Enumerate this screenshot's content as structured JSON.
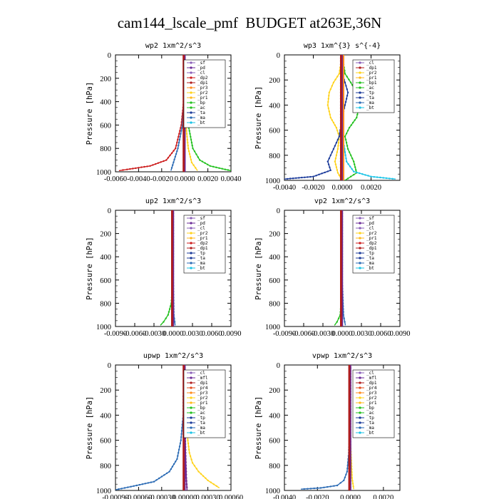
{
  "title": "cam144_lscale_pmf  BUDGET at263E,36N",
  "chart_data": [
    {
      "type": "line",
      "title": "wp2  1xm^2/s^3",
      "ylabel": "Pressure [hPa]",
      "xlim": [
        -0.006,
        0.004
      ],
      "ylim": [
        1000,
        0
      ],
      "xticks": [
        "-0.0060",
        "-0.0040",
        "-0.0020",
        "0.0000",
        "0.0020",
        "0.0040"
      ],
      "yticks": [
        0,
        200,
        400,
        600,
        800,
        1000
      ],
      "legend": [
        "_sf",
        "_pd",
        "_cl",
        "_dp2",
        "_dp1",
        "_pr3",
        "_pr2",
        "_pr1",
        "_bp",
        "_ac",
        "_ta",
        "_ma",
        "_bt"
      ],
      "legend_position": "top-right",
      "series": [
        {
          "name": "_pr1",
          "color": "#22c11e",
          "x": [
            0,
            0,
            0.0001,
            0.0003,
            0.0007,
            0.0013,
            0.0022,
            0.0035,
            0.004
          ],
          "y": [
            0,
            200,
            400,
            600,
            800,
            900,
            950,
            980,
            990
          ]
        },
        {
          "name": "_dp1",
          "color": "#cc1a1a",
          "x": [
            0,
            0,
            -0.0001,
            -0.0003,
            -0.0008,
            -0.0016,
            -0.003,
            -0.005,
            -0.0057
          ],
          "y": [
            0,
            200,
            400,
            600,
            800,
            900,
            950,
            980,
            990
          ]
        },
        {
          "name": "_pr2",
          "color": "#ffd21a",
          "x": [
            0,
            0,
            0,
            0.0001,
            0.0003,
            0.0006,
            0.0011
          ],
          "y": [
            0,
            200,
            400,
            600,
            800,
            920,
            990
          ]
        },
        {
          "name": "_pd",
          "color": "#6a2a96",
          "x": [
            -0.0001,
            -0.0001,
            -0.0001,
            -0.0001,
            -0.0001,
            -0.0001
          ],
          "y": [
            0,
            200,
            400,
            600,
            800,
            1000
          ]
        },
        {
          "name": "_ma",
          "color": "#2a6ab4",
          "x": [
            0,
            0,
            -0.0001,
            -0.0002,
            -0.0006,
            -0.0012
          ],
          "y": [
            0,
            200,
            400,
            600,
            800,
            990
          ]
        }
      ]
    },
    {
      "type": "line",
      "title": "wp3  1xm^{3} s^{-4}",
      "ylabel": "Pressure [hPa]",
      "xlim": [
        -0.004,
        0.004
      ],
      "ylim": [
        1000,
        0
      ],
      "xticks": [
        "-0.0040",
        "-0.0020",
        "0.0000",
        "0.0020"
      ],
      "yticks": [
        0,
        200,
        400,
        600,
        800,
        1000
      ],
      "legend": [
        "_cl",
        "_dp1",
        "_pr2",
        "_pr1",
        "_bp1",
        "_ac",
        "_tp",
        "_ta",
        "_ma",
        "_bt"
      ],
      "legend_position": "top-right",
      "series": [
        {
          "name": "_pr2",
          "color": "#ffd21a",
          "x": [
            0,
            -0.0002,
            -0.0006,
            -0.0009,
            -0.001,
            -0.0008,
            -0.0004,
            -0.0002,
            -0.0003,
            -0.0005,
            -0.0003,
            0
          ],
          "y": [
            0,
            150,
            220,
            300,
            400,
            500,
            580,
            650,
            750,
            850,
            940,
            1000
          ]
        },
        {
          "name": "_ac",
          "color": "#22c11e",
          "x": [
            0,
            0.0002,
            0.0006,
            0.001,
            0.0012,
            0.001,
            0.0005,
            0.0002,
            0.0004,
            0.0008,
            0.001,
            0.0002
          ],
          "y": [
            0,
            150,
            220,
            300,
            400,
            500,
            580,
            650,
            750,
            850,
            940,
            1000
          ]
        },
        {
          "name": "_tp",
          "color": "#1a3a9a",
          "x": [
            0,
            0,
            0.0002,
            0.0004,
            0.0002,
            0,
            -0.0002,
            -0.0006,
            -0.001,
            -0.0008,
            -0.002,
            -0.004
          ],
          "y": [
            0,
            150,
            220,
            300,
            400,
            500,
            650,
            750,
            850,
            920,
            970,
            990
          ]
        },
        {
          "name": "_bt",
          "color": "#19c3e6",
          "x": [
            0,
            0,
            0.0001,
            0.0003,
            0.0008,
            0.002,
            0.0037
          ],
          "y": [
            0,
            400,
            700,
            850,
            930,
            970,
            990
          ]
        },
        {
          "name": "_dp1",
          "color": "#cc1a1a",
          "x": [
            -0.0001,
            -0.0001,
            -0.0001,
            -0.0001,
            -0.0001,
            -0.0001
          ],
          "y": [
            0,
            200,
            400,
            600,
            800,
            1000
          ]
        }
      ]
    },
    {
      "type": "line",
      "title": "up2  1xm^2/s^3",
      "ylabel": "Pressure [hPa]",
      "xlim": [
        -0.009,
        0.009
      ],
      "ylim": [
        1000,
        0
      ],
      "xticks": [
        "-0.0090",
        "-0.0060",
        "-0.0030",
        "0.0000",
        "0.0030",
        "0.0060",
        "0.0090"
      ],
      "yticks": [
        0,
        200,
        400,
        600,
        800,
        1000
      ],
      "legend": [
        "_sf",
        "_pd",
        "_cl",
        "_pr2",
        "_pr1",
        "_dp2",
        "_dp1",
        "_tp",
        "_ta",
        "_ma",
        "_bt"
      ],
      "legend_position": "top-right",
      "series": [
        {
          "name": "_pr1",
          "color": "#22c11e",
          "x": [
            0,
            0,
            -0.0001,
            -0.0003,
            -0.0008,
            -0.0015,
            -0.002
          ],
          "y": [
            0,
            400,
            650,
            800,
            900,
            960,
            990
          ]
        },
        {
          "name": "_dp1",
          "color": "#cc1a1a",
          "x": [
            -0.0001,
            -0.0001,
            -0.0001,
            -0.0001,
            -0.0001,
            -0.0001
          ],
          "y": [
            0,
            200,
            400,
            600,
            800,
            1000
          ]
        },
        {
          "name": "_ma",
          "color": "#2a6ab4",
          "x": [
            0,
            0,
            0.0001,
            0.0003
          ],
          "y": [
            0,
            600,
            900,
            990
          ]
        }
      ]
    },
    {
      "type": "line",
      "title": "vp2  1xm^2/s^3",
      "ylabel": "Pressure [hPa]",
      "xlim": [
        -0.009,
        0.009
      ],
      "ylim": [
        1000,
        0
      ],
      "xticks": [
        "-0.0090",
        "-0.0060",
        "-0.0030",
        "0.0000",
        "0.0030",
        "0.0060",
        "0.0090"
      ],
      "yticks": [
        0,
        200,
        400,
        600,
        800,
        1000
      ],
      "legend": [
        "_sf",
        "_pd",
        "_cl",
        "_pr2",
        "_pr1",
        "_dp2",
        "_dp1",
        "_tp",
        "_ta",
        "_ma",
        "_bt"
      ],
      "legend_position": "top-right",
      "series": [
        {
          "name": "_pr1",
          "color": "#22c11e",
          "x": [
            0,
            0,
            -0.0001,
            -0.0003,
            -0.0008,
            -0.0012
          ],
          "y": [
            0,
            500,
            750,
            900,
            960,
            990
          ]
        },
        {
          "name": "_dp1",
          "color": "#cc1a1a",
          "x": [
            -0.0001,
            -0.0001,
            -0.0001,
            -0.0001,
            -0.0001,
            -0.0001
          ],
          "y": [
            0,
            200,
            400,
            600,
            800,
            1000
          ]
        },
        {
          "name": "_ma",
          "color": "#2a6ab4",
          "x": [
            0,
            0,
            0.0002,
            0.0005
          ],
          "y": [
            0,
            600,
            900,
            990
          ]
        }
      ]
    },
    {
      "type": "line",
      "title": "upwp  1xm^2/s^3",
      "ylabel": "Pressure [hPa]",
      "xlim": [
        -0.0009,
        0.0006
      ],
      "ylim": [
        1000,
        0
      ],
      "xticks": [
        "-0.00090",
        "-0.00060",
        "-0.00030",
        "0.00000",
        "0.00030",
        "0.00060"
      ],
      "yticks": [
        0,
        200,
        400,
        600,
        800,
        1000
      ],
      "legend": [
        "_cl",
        "_mfl",
        "_dp1",
        "_pr4",
        "_pr3",
        "_pr2",
        "_pr1",
        "_bp",
        "_ac",
        "_tp",
        "_ta",
        "_ma",
        "_bt"
      ],
      "legend_position": "top-right",
      "series": [
        {
          "name": "_pr2",
          "color": "#ffd21a",
          "x": [
            0,
            2e-05,
            4e-05,
            6e-05,
            0.0001,
            0.00018,
            0.0003,
            0.00045
          ],
          "y": [
            0,
            300,
            600,
            700,
            780,
            850,
            920,
            980
          ]
        },
        {
          "name": "_ma",
          "color": "#2a6ab4",
          "x": [
            0,
            -2e-05,
            -5e-05,
            -0.0001,
            -0.0002,
            -0.0004,
            -0.0007,
            -0.0009
          ],
          "y": [
            0,
            400,
            600,
            750,
            850,
            930,
            970,
            995
          ]
        },
        {
          "name": "_bt",
          "color": "#19c3e6",
          "x": [
            -1e-05,
            -2e-05,
            -2e-05,
            -1e-05,
            0
          ],
          "y": [
            150,
            250,
            400,
            550,
            700
          ]
        },
        {
          "name": "_dp1",
          "color": "#cc1a1a",
          "x": [
            0,
            0,
            1e-05,
            2e-05,
            3e-05
          ],
          "y": [
            0,
            400,
            700,
            900,
            1000
          ]
        },
        {
          "name": "_mfl",
          "color": "#6a2a96",
          "x": [
            0,
            0,
            1e-05,
            2e-05,
            3e-05
          ],
          "y": [
            0,
            400,
            700,
            900,
            1000
          ]
        }
      ]
    },
    {
      "type": "line",
      "title": "vpwp  1xm^2/s^3",
      "ylabel": "Pressure [hPa]",
      "xlim": [
        -0.004,
        0.003
      ],
      "ylim": [
        1000,
        0
      ],
      "xticks": [
        "-0.0040",
        "-0.0020",
        "0.0000",
        "0.0020"
      ],
      "yticks": [
        0,
        200,
        400,
        600,
        800,
        1000
      ],
      "legend": [
        "_cl",
        "_mfl",
        "_dp1",
        "_pr4",
        "_pr3",
        "_pr2",
        "_pr1",
        "_bp",
        "_ac",
        "_tp",
        "_ta",
        "_ma",
        "_bt"
      ],
      "legend_position": "top-right",
      "series": [
        {
          "name": "_ma",
          "color": "#2a6ab4",
          "x": [
            0,
            0,
            -0.0001,
            -0.0002,
            -0.0004,
            -0.0008,
            -0.0018,
            -0.003
          ],
          "y": [
            0,
            400,
            700,
            850,
            920,
            960,
            980,
            990
          ]
        },
        {
          "name": "_pr2",
          "color": "#ffd21a",
          "x": [
            0,
            0,
            0.0001,
            0.0002
          ],
          "y": [
            0,
            600,
            900,
            990
          ]
        },
        {
          "name": "_dp1",
          "color": "#cc1a1a",
          "x": [
            0,
            0,
            0,
            0
          ],
          "y": [
            0,
            400,
            800,
            1000
          ]
        },
        {
          "name": "_mfl",
          "color": "#6a2a96",
          "x": [
            0,
            0,
            0,
            0
          ],
          "y": [
            0,
            400,
            800,
            1000
          ]
        }
      ]
    }
  ],
  "legend_colors": {
    "_sf": "#8a5fb8",
    "_pd": "#6a2a96",
    "_cl": "#8a5fb8",
    "_mfl": "#6a2a96",
    "_dp2": "#cc1a1a",
    "_dp1": "#b01c1c",
    "_pr4": "#e34a1a",
    "_pr3": "#ff8a1a",
    "_pr2": "#ffd21a",
    "_pr1": "#ffb81a",
    "_bp": "#22c11e",
    "_bp1": "#22c11e",
    "_ac": "#22c11e",
    "_tp": "#1a3a9a",
    "_ta": "#1a3a9a",
    "_ma": "#2a6ab4",
    "_bt": "#19c3e6"
  }
}
